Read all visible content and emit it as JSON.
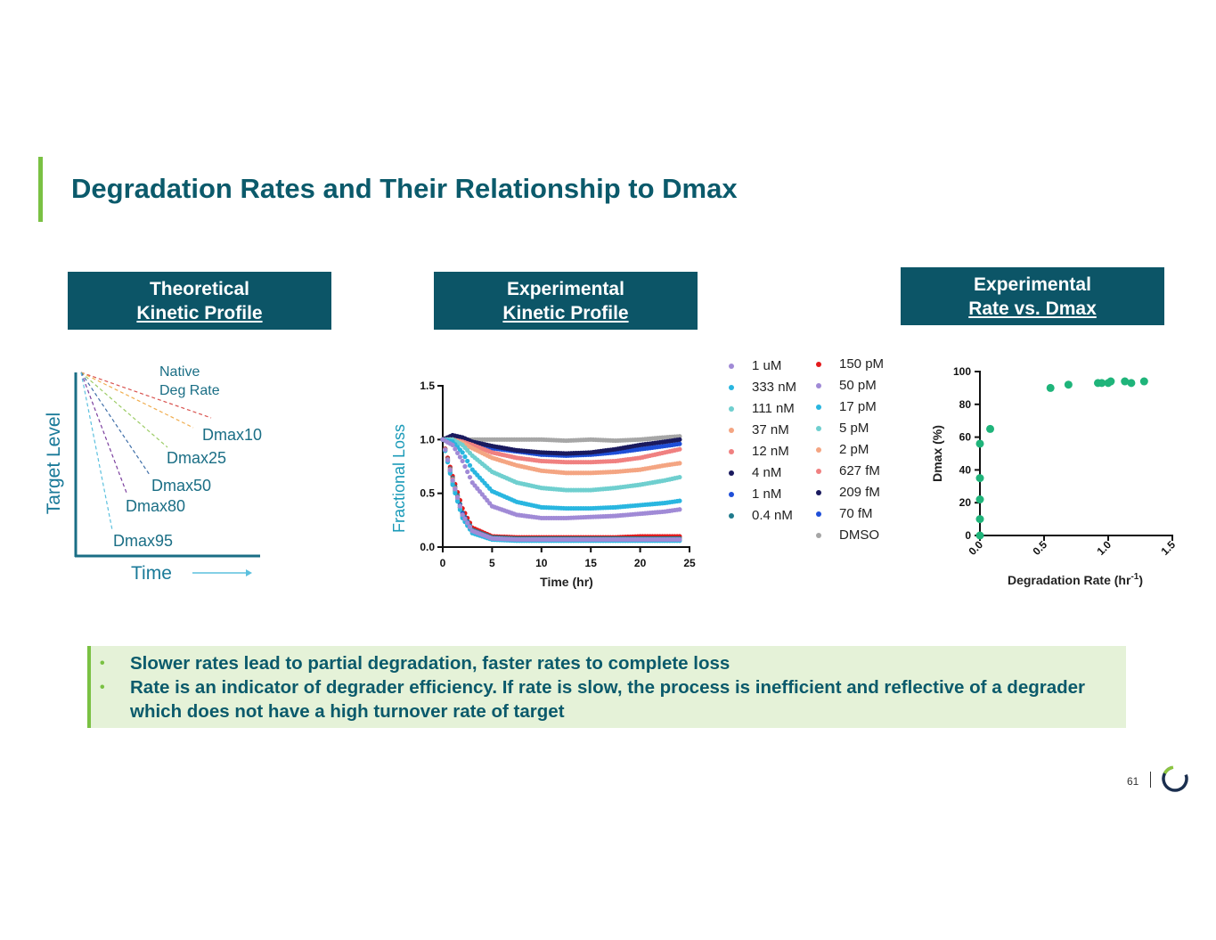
{
  "title": "Degradation Rates and Their Relationship to Dmax",
  "headers": [
    {
      "line1": "Theoretical",
      "line2": "Kinetic Profile"
    },
    {
      "line1": "Experimental",
      "line2": "Kinetic Profile"
    },
    {
      "line1": "Experimental",
      "line2": "Rate vs. Dmax"
    }
  ],
  "bullets": [
    "Slower rates lead to partial degradation, faster rates to complete loss",
    "Rate is an indicator of degrader efficiency. If rate is slow, the process is inefficient and reflective of a degrader which does not have a high turnover rate of target"
  ],
  "page_number": "61",
  "colors": {
    "primary": "#0c5567",
    "accent": "#7ac143",
    "scatter": "#1fb47a"
  },
  "chart_data": [
    {
      "type": "line",
      "title": "Theoretical Kinetic Profile",
      "xlabel": "Time",
      "ylabel": "Target Level",
      "annotation": "Native\nDeg Rate",
      "annotation_lines": [
        "Native",
        "Deg Rate"
      ],
      "series": [
        {
          "name": "Native Deg Rate",
          "color": "#d9534f"
        },
        {
          "name": "Dmax10",
          "color": "#f0ad4e"
        },
        {
          "name": "Dmax25",
          "color": "#9ccc65"
        },
        {
          "name": "Dmax50",
          "color": "#3f6fa8"
        },
        {
          "name": "Dmax80",
          "color": "#7b3f9e"
        },
        {
          "name": "Dmax95",
          "color": "#5bc0de"
        }
      ]
    },
    {
      "type": "scatter",
      "title": "Experimental Kinetic Profile",
      "xlabel": "Time (hr)",
      "ylabel": "Fractional Loss",
      "xlim": [
        0,
        25
      ],
      "ylim": [
        0,
        1.5
      ],
      "xticks": [
        "0",
        "5",
        "10",
        "15",
        "20",
        "25"
      ],
      "yticks": [
        "0.0",
        "0.5",
        "1.0",
        "1.5"
      ],
      "x": [
        0,
        1,
        2,
        3,
        5,
        7.5,
        10,
        12.5,
        15,
        17.5,
        20,
        22.5,
        24
      ],
      "series": [
        {
          "name": "1 uM",
          "color": "#a08ad6",
          "values": [
            1,
            0.62,
            0.3,
            0.15,
            0.08,
            0.07,
            0.07,
            0.07,
            0.07,
            0.07,
            0.07,
            0.07,
            0.07
          ]
        },
        {
          "name": "333 nM",
          "color": "#29b6e0",
          "values": [
            1,
            0.58,
            0.27,
            0.13,
            0.07,
            0.06,
            0.06,
            0.06,
            0.06,
            0.06,
            0.06,
            0.06,
            0.06
          ]
        },
        {
          "name": "111 nM",
          "color": "#6fcfcf",
          "values": [
            1,
            0.6,
            0.28,
            0.14,
            0.08,
            0.07,
            0.07,
            0.07,
            0.07,
            0.07,
            0.07,
            0.07,
            0.07
          ]
        },
        {
          "name": "37 nM",
          "color": "#f4a582",
          "values": [
            1,
            0.61,
            0.29,
            0.14,
            0.08,
            0.07,
            0.07,
            0.07,
            0.07,
            0.07,
            0.07,
            0.07,
            0.07
          ]
        },
        {
          "name": "12 nM",
          "color": "#f08080",
          "values": [
            1,
            0.63,
            0.3,
            0.15,
            0.08,
            0.07,
            0.07,
            0.07,
            0.07,
            0.07,
            0.07,
            0.07,
            0.07
          ]
        },
        {
          "name": "4 nM",
          "color": "#1a1a5e",
          "values": [
            1,
            0.6,
            0.29,
            0.14,
            0.08,
            0.07,
            0.07,
            0.07,
            0.07,
            0.07,
            0.07,
            0.07,
            0.07
          ]
        },
        {
          "name": "1 nM",
          "color": "#1f4fd8",
          "values": [
            1,
            0.62,
            0.31,
            0.15,
            0.08,
            0.07,
            0.07,
            0.07,
            0.07,
            0.07,
            0.07,
            0.07,
            0.07
          ]
        },
        {
          "name": "0.4 nM",
          "color": "#1f7a8c",
          "values": [
            1,
            0.64,
            0.32,
            0.16,
            0.09,
            0.08,
            0.08,
            0.08,
            0.08,
            0.08,
            0.08,
            0.08,
            0.08
          ]
        },
        {
          "name": "150 pM",
          "color": "#e41a1c",
          "values": [
            1,
            0.66,
            0.36,
            0.18,
            0.1,
            0.09,
            0.09,
            0.09,
            0.09,
            0.09,
            0.1,
            0.1,
            0.1
          ]
        },
        {
          "name": "50 pM",
          "color": "#a08ad6",
          "values": [
            1,
            0.95,
            0.8,
            0.6,
            0.38,
            0.3,
            0.27,
            0.27,
            0.28,
            0.29,
            0.31,
            0.33,
            0.35
          ]
        },
        {
          "name": "17 pM",
          "color": "#29b6e0",
          "values": [
            1,
            0.98,
            0.88,
            0.72,
            0.52,
            0.42,
            0.37,
            0.36,
            0.36,
            0.37,
            0.39,
            0.41,
            0.43
          ]
        },
        {
          "name": "5 pM",
          "color": "#6fcfcf",
          "values": [
            1,
            1,
            0.95,
            0.85,
            0.7,
            0.6,
            0.55,
            0.53,
            0.53,
            0.55,
            0.58,
            0.62,
            0.65
          ]
        },
        {
          "name": "2 pM",
          "color": "#f4a582",
          "values": [
            1,
            1,
            0.97,
            0.92,
            0.83,
            0.76,
            0.71,
            0.69,
            0.69,
            0.7,
            0.72,
            0.76,
            0.78
          ]
        },
        {
          "name": "627 fM",
          "color": "#f08080",
          "values": [
            1,
            1,
            0.98,
            0.95,
            0.88,
            0.83,
            0.8,
            0.79,
            0.79,
            0.8,
            0.83,
            0.88,
            0.91
          ]
        },
        {
          "name": "209 fM",
          "color": "#1a1a5e",
          "values": [
            1,
            1.04,
            1.02,
            0.98,
            0.94,
            0.9,
            0.88,
            0.87,
            0.88,
            0.91,
            0.95,
            0.98,
            1.0
          ]
        },
        {
          "name": "70 fM",
          "color": "#1f4fd8",
          "values": [
            1,
            1,
            0.99,
            0.96,
            0.92,
            0.89,
            0.86,
            0.85,
            0.86,
            0.88,
            0.91,
            0.94,
            0.96
          ]
        },
        {
          "name": "DMSO",
          "color": "#a6a6a6",
          "values": [
            1,
            1.02,
            1,
            1,
            1,
            1,
            1,
            0.99,
            1,
            0.99,
            1,
            1.02,
            1.03
          ]
        }
      ]
    },
    {
      "type": "scatter",
      "title": "Experimental Rate vs. Dmax",
      "xlabel": "Degradation Rate (hr",
      "xlabel_sup": "-1",
      "xlabel_end": ")",
      "ylabel": "Dmax (%)",
      "xlim": [
        0,
        1.5
      ],
      "ylim": [
        0,
        100
      ],
      "xticks": [
        "0.0",
        "0.5",
        "1.0",
        "1.5"
      ],
      "yticks": [
        "0",
        "20",
        "40",
        "60",
        "80",
        "100"
      ],
      "x": [
        0,
        0,
        0,
        0,
        0,
        0.08,
        0.55,
        0.69,
        0.92,
        0.95,
        1.0,
        1.02,
        1.13,
        1.18,
        1.28
      ],
      "y": [
        0,
        10,
        22,
        35,
        56,
        65,
        90,
        92,
        93,
        93,
        93,
        94,
        94,
        93,
        94
      ]
    }
  ]
}
